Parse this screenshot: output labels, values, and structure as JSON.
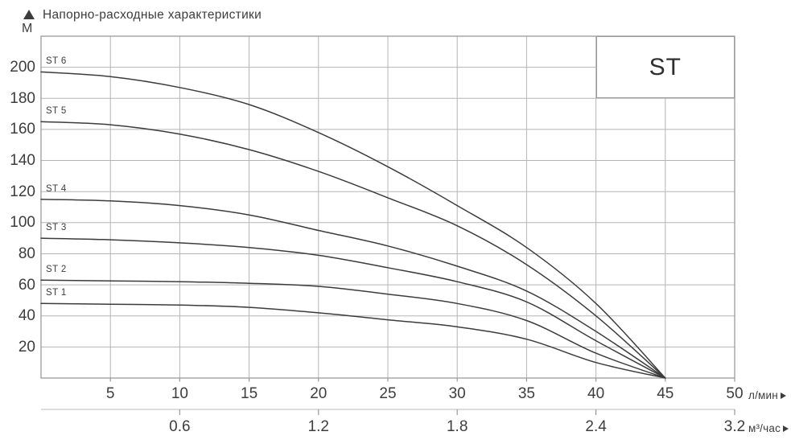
{
  "chart_data": {
    "type": "line",
    "title": "Напорно-расходные характеристики",
    "series_family": "ST",
    "ylabel": "М",
    "xlabel": "л/мин",
    "x2label": "м³/час",
    "xlim": [
      0,
      50
    ],
    "ylim": [
      0,
      220
    ],
    "grid": true,
    "legend_position": "box top-right",
    "x_ticks": [
      5,
      10,
      15,
      20,
      25,
      30,
      35,
      40,
      45,
      50
    ],
    "y_ticks": [
      20,
      40,
      60,
      80,
      100,
      120,
      140,
      160,
      180,
      200
    ],
    "x2_ticks": [
      {
        "label": "0.6",
        "x": 10
      },
      {
        "label": "1.2",
        "x": 20
      },
      {
        "label": "1.8",
        "x": 30
      },
      {
        "label": "2.4",
        "x": 40
      },
      {
        "label": "3.2",
        "x": 50
      }
    ],
    "x": [
      0,
      5,
      10,
      15,
      20,
      25,
      30,
      35,
      40,
      45
    ],
    "series": [
      {
        "name": "ST 6",
        "values": [
          197,
          194,
          187,
          176,
          158,
          136,
          111,
          84,
          48,
          0
        ]
      },
      {
        "name": "ST 5",
        "values": [
          165,
          163,
          157,
          147,
          133,
          116,
          98,
          73,
          40,
          0
        ]
      },
      {
        "name": "ST 4",
        "values": [
          115,
          114,
          111,
          105,
          95,
          85,
          72,
          56,
          30,
          0
        ]
      },
      {
        "name": "ST 3",
        "values": [
          90,
          89,
          87,
          84,
          79,
          71,
          62,
          49,
          24,
          0
        ]
      },
      {
        "name": "ST 2",
        "values": [
          63,
          62.5,
          62,
          61,
          59,
          54,
          48,
          37,
          16,
          0
        ]
      },
      {
        "name": "ST 1",
        "values": [
          48,
          47.5,
          47,
          45.5,
          42,
          37.5,
          33,
          25,
          10,
          0
        ]
      }
    ],
    "colors": {
      "curve": "#3c3c3c",
      "grid": "#b5b5b5",
      "border": "#9a9a9a",
      "text": "#3d3d3d",
      "secondary_axis": "#c6c6c6"
    }
  }
}
